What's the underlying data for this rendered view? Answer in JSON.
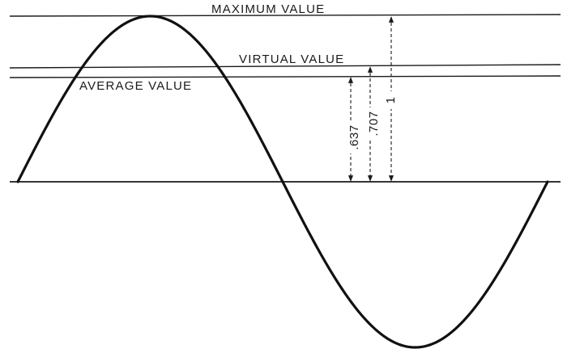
{
  "labels": {
    "maximum": "MAXIMUM VALUE",
    "virtual": "VIRTUAL VALUE",
    "average": "AVERAGE VALUE"
  },
  "dimensions": {
    "average": ".637",
    "virtual": ".707",
    "maximum": "1"
  },
  "levels": {
    "maximum": 1,
    "virtual": 0.707,
    "average": 0.637
  }
}
